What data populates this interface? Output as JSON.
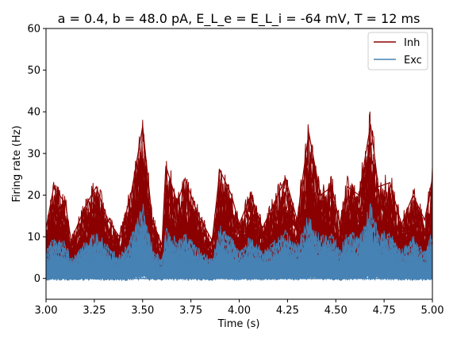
{
  "chart_data": {
    "type": "line",
    "title": "a = 0.4, b = 48.0 pA, E_L_e = E_L_i = -64 mV, T = 12 ms",
    "xlabel": "Time (s)",
    "ylabel": "Firing rate (Hz)",
    "xlim": [
      3.0,
      5.0
    ],
    "ylim": [
      -5,
      60
    ],
    "xticks": [
      "3.00",
      "3.25",
      "3.50",
      "3.75",
      "4.00",
      "4.25",
      "4.50",
      "4.75",
      "5.00"
    ],
    "yticks": [
      "0",
      "10",
      "20",
      "30",
      "40",
      "50",
      "60"
    ],
    "legend_position": "top-right",
    "series": [
      {
        "name": "Inh",
        "color": "#8b0000",
        "x": [
          3.0,
          3.04,
          3.1,
          3.13,
          3.2,
          3.26,
          3.32,
          3.38,
          3.44,
          3.5,
          3.55,
          3.6,
          3.62,
          3.68,
          3.72,
          3.78,
          3.86,
          3.9,
          3.96,
          4.0,
          4.06,
          4.12,
          4.18,
          4.24,
          4.3,
          4.36,
          4.42,
          4.48,
          4.52,
          4.56,
          4.62,
          4.68,
          4.72,
          4.78,
          4.84,
          4.9,
          4.96,
          5.0
        ],
        "values": [
          12,
          22,
          18,
          9,
          17,
          22,
          14,
          10,
          20,
          36.5,
          14,
          8,
          27,
          18,
          24,
          16,
          9,
          26,
          20,
          13,
          20,
          12,
          18,
          24,
          14,
          35,
          20,
          22,
          13,
          22,
          20,
          37,
          22,
          23,
          13,
          20,
          14,
          24
        ]
      },
      {
        "name": "Exc",
        "color": "#4682b4",
        "x": [
          3.0,
          3.04,
          3.1,
          3.13,
          3.2,
          3.26,
          3.32,
          3.38,
          3.44,
          3.5,
          3.55,
          3.6,
          3.62,
          3.68,
          3.72,
          3.78,
          3.86,
          3.9,
          3.96,
          4.0,
          4.06,
          4.12,
          4.18,
          4.24,
          4.3,
          4.36,
          4.42,
          4.48,
          4.52,
          4.56,
          4.62,
          4.68,
          4.72,
          4.78,
          4.84,
          4.9,
          4.96,
          5.0
        ],
        "values": [
          6,
          9,
          8,
          4,
          8,
          10,
          7,
          5,
          9,
          16,
          7,
          4,
          11,
          8,
          10,
          7,
          4,
          11,
          9,
          6,
          9,
          6,
          8,
          10,
          7,
          14,
          9,
          10,
          6,
          10,
          9,
          16,
          10,
          10,
          6,
          9,
          6,
          10
        ]
      }
    ]
  }
}
